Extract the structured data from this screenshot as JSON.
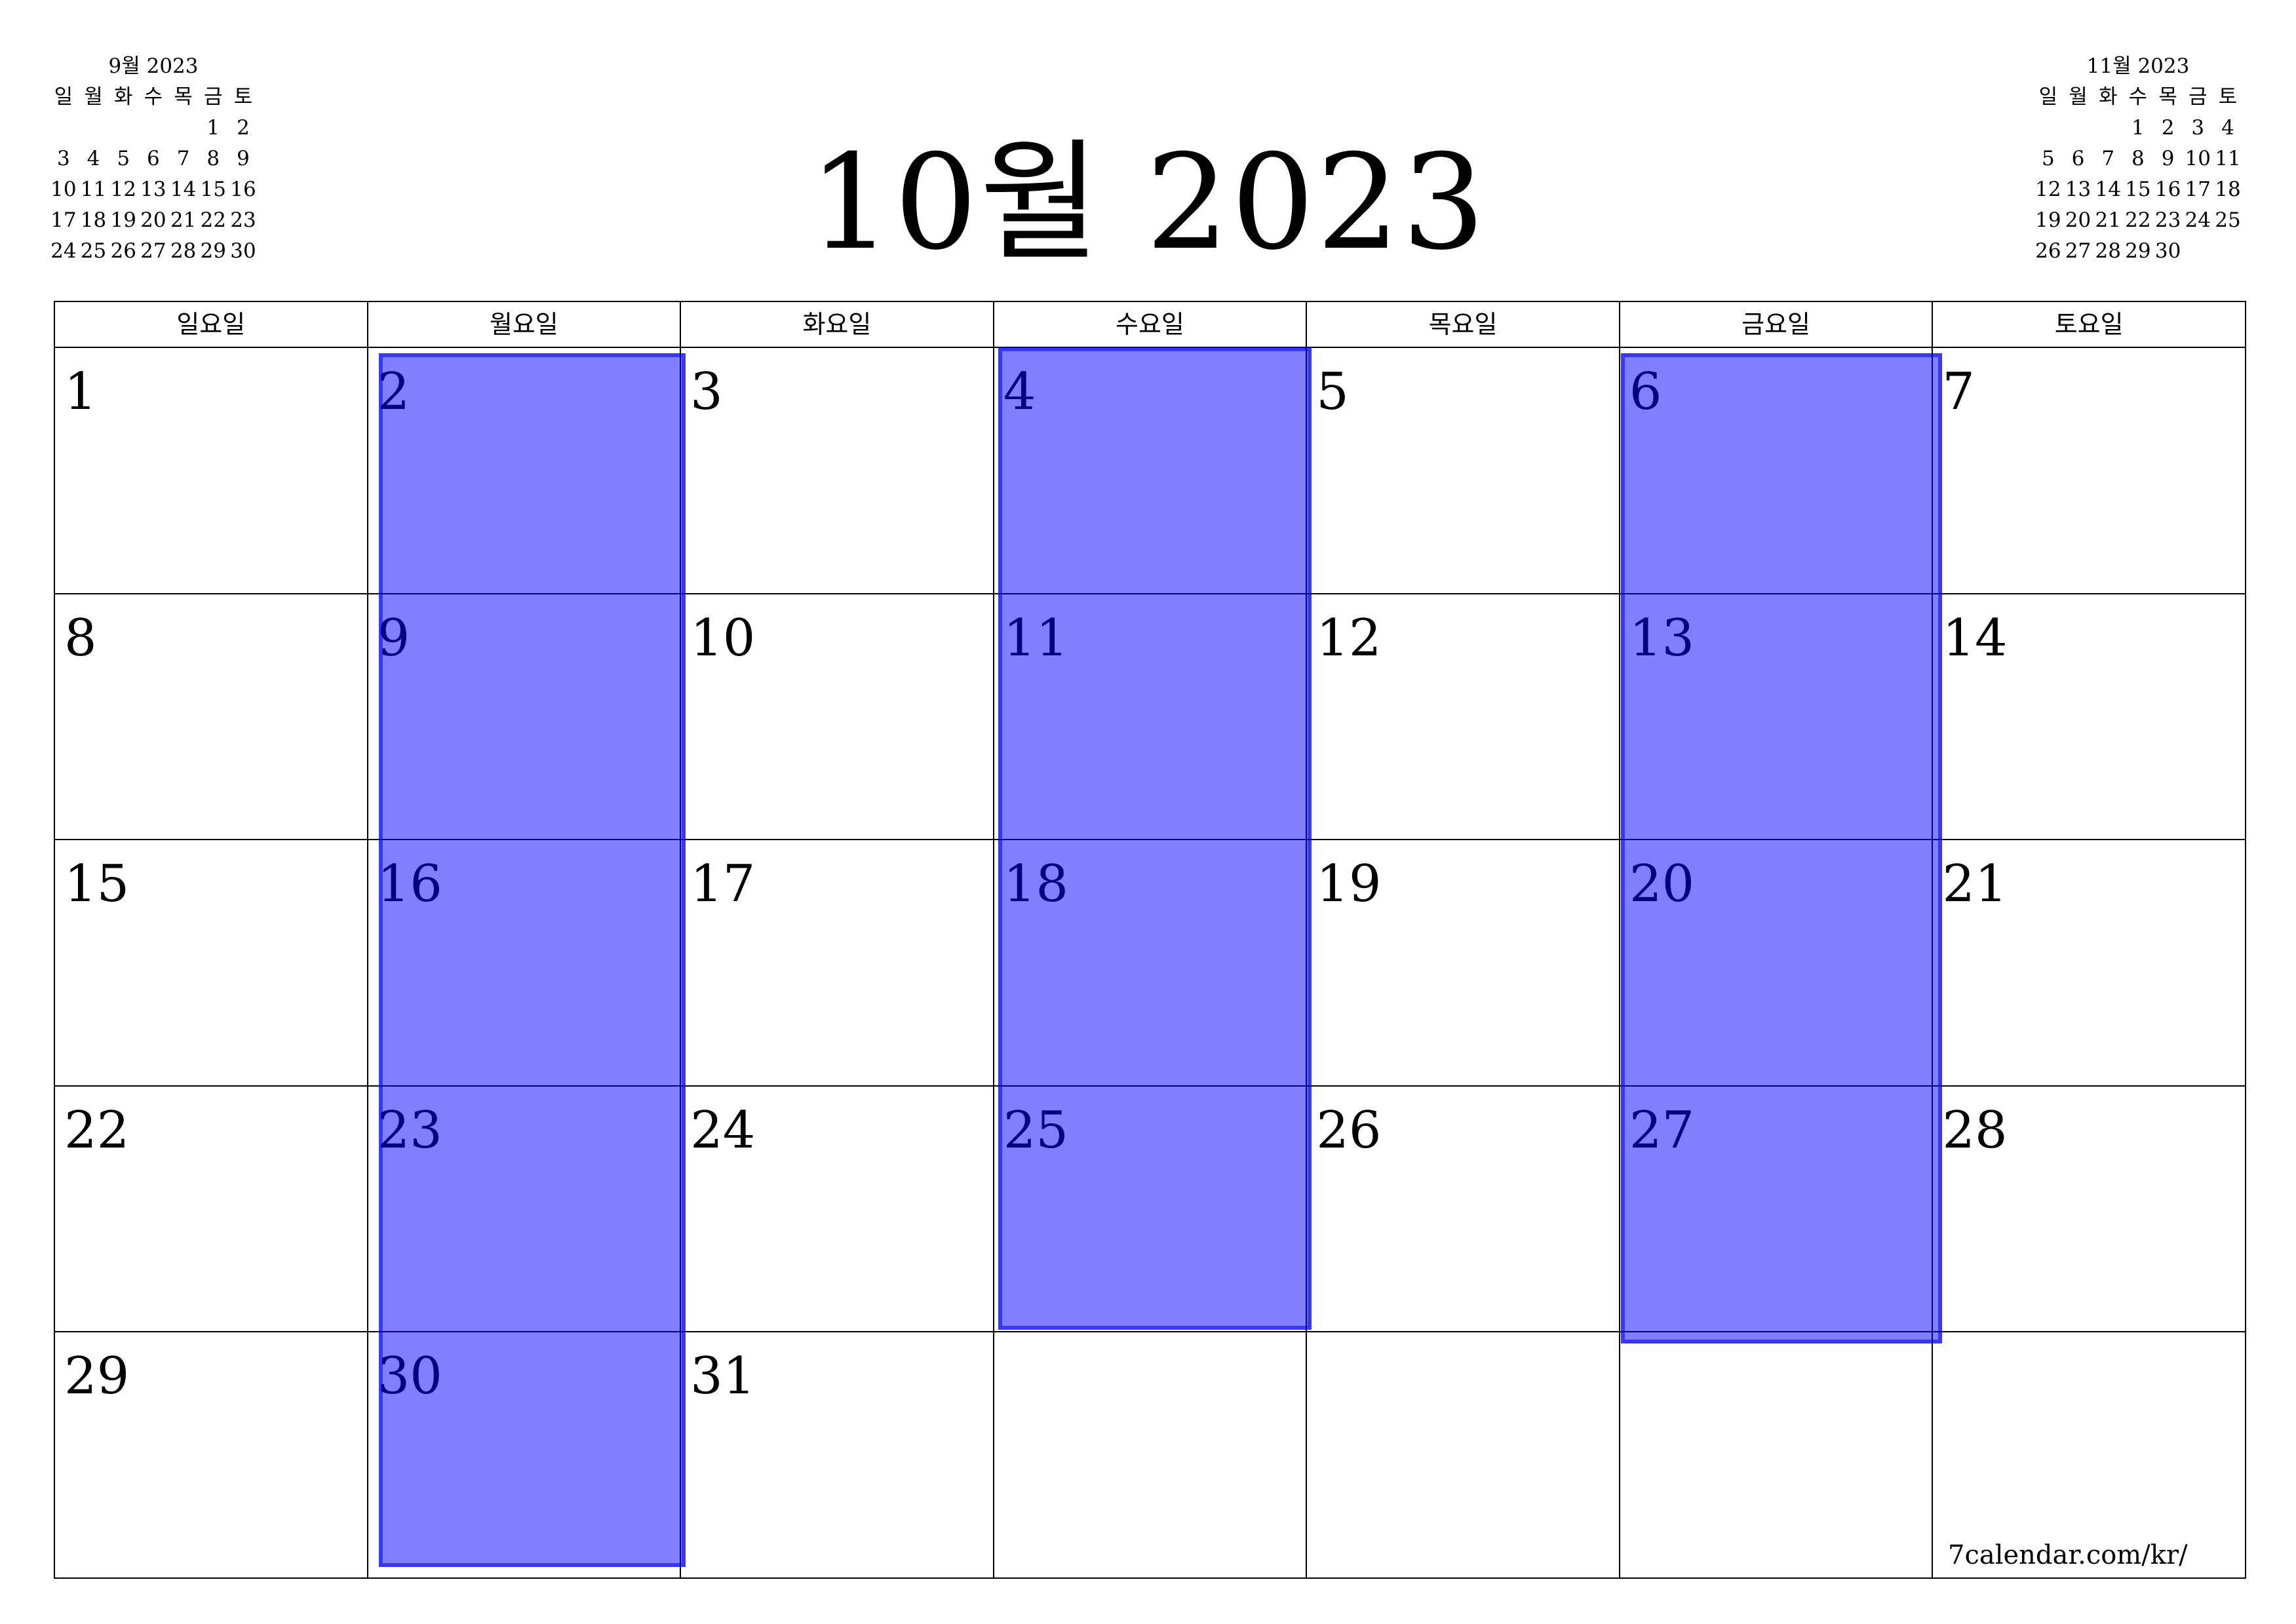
{
  "title": "10월 2023",
  "weekday_headers": [
    "일요일",
    "월요일",
    "화요일",
    "수요일",
    "목요일",
    "금요일",
    "토요일"
  ],
  "weeks": [
    [
      "1",
      "2",
      "3",
      "4",
      "5",
      "6",
      "7"
    ],
    [
      "8",
      "9",
      "10",
      "11",
      "12",
      "13",
      "14"
    ],
    [
      "15",
      "16",
      "17",
      "18",
      "19",
      "20",
      "21"
    ],
    [
      "22",
      "23",
      "24",
      "25",
      "26",
      "27",
      "28"
    ],
    [
      "29",
      "30",
      "31",
      "",
      "",
      "",
      ""
    ]
  ],
  "highlighted_weekdays": [
    "월요일",
    "수요일",
    "금요일"
  ],
  "highlight_color": "#8080ff",
  "mini_prev": {
    "title": "9월 2023",
    "weekdays": [
      "일",
      "월",
      "화",
      "수",
      "목",
      "금",
      "토"
    ],
    "weeks": [
      [
        "",
        "",
        "",
        "",
        "",
        "1",
        "2"
      ],
      [
        "3",
        "4",
        "5",
        "6",
        "7",
        "8",
        "9"
      ],
      [
        "10",
        "11",
        "12",
        "13",
        "14",
        "15",
        "16"
      ],
      [
        "17",
        "18",
        "19",
        "20",
        "21",
        "22",
        "23"
      ],
      [
        "24",
        "25",
        "26",
        "27",
        "28",
        "29",
        "30"
      ]
    ]
  },
  "mini_next": {
    "title": "11월 2023",
    "weekdays": [
      "일",
      "월",
      "화",
      "수",
      "목",
      "금",
      "토"
    ],
    "weeks": [
      [
        "",
        "",
        "",
        "1",
        "2",
        "3",
        "4"
      ],
      [
        "5",
        "6",
        "7",
        "8",
        "9",
        "10",
        "11"
      ],
      [
        "12",
        "13",
        "14",
        "15",
        "16",
        "17",
        "18"
      ],
      [
        "19",
        "20",
        "21",
        "22",
        "23",
        "24",
        "25"
      ],
      [
        "26",
        "27",
        "28",
        "29",
        "30",
        "",
        ""
      ]
    ]
  },
  "footer": "7calendar.com/kr/"
}
